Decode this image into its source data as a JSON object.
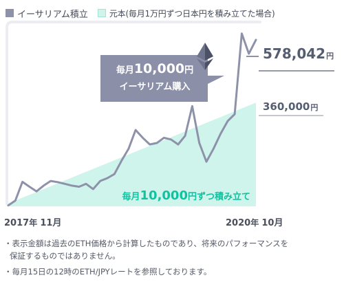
{
  "legend": {
    "series_a": "イーサリアム積立",
    "series_b": "元本(毎月1万円ずつ日本円を積み立てた場合)"
  },
  "callout": {
    "line1_prefix": "毎月",
    "line1_amount": "10,000",
    "line1_unit": "円",
    "line2": "イーサリアム購入"
  },
  "final_value": {
    "amount": "578,042",
    "unit": "円"
  },
  "principal_value": {
    "amount": "360,000",
    "unit": "円"
  },
  "area_label": {
    "prefix": "毎月",
    "amount": "10,000",
    "suffix": "円ずつ積み立て"
  },
  "x_axis": {
    "start_num": "2017",
    "start_mid": "年 ",
    "start_month": "11月",
    "end_num": "2020",
    "end_mid": "年 ",
    "end_month": "10月"
  },
  "notes": [
    "・表示金額は過去のETH価格から計算したものであり、将来のパフォーマンスを",
    "保証するものではありません。",
    "・毎月15日の12時のETH/JPYレートを参照しております。"
  ],
  "colors": {
    "line": "#8d92a9",
    "area": "#cff4ec",
    "callout": "#8b8fa8",
    "area_text": "#10c3a0",
    "axis": "#555d70"
  },
  "icon": "ethereum-icon",
  "chart_data": {
    "type": "line+area",
    "x_start": "2017-11",
    "x_end": "2020-10",
    "ylim": [
      0,
      640000
    ],
    "series": [
      {
        "name": "イーサリアム積立",
        "type": "line",
        "values": [
          3000,
          20000,
          85000,
          68000,
          52000,
          72000,
          88000,
          84000,
          78000,
          72000,
          68000,
          78000,
          60000,
          88000,
          98000,
          112000,
          158000,
          200000,
          265000,
          238000,
          215000,
          220000,
          238000,
          232000,
          215000,
          245000,
          348000,
          220000,
          155000,
          200000,
          252000,
          296000,
          320000,
          600000,
          530000,
          578042
        ]
      },
      {
        "name": "元本(毎月1万円ずつ日本円を積み立てた場合)",
        "type": "area",
        "values": [
          10000,
          20000,
          30000,
          40000,
          50000,
          60000,
          70000,
          80000,
          90000,
          100000,
          110000,
          120000,
          130000,
          140000,
          150000,
          160000,
          170000,
          180000,
          190000,
          200000,
          210000,
          220000,
          230000,
          240000,
          250000,
          260000,
          270000,
          280000,
          290000,
          300000,
          310000,
          320000,
          330000,
          340000,
          350000,
          360000
        ]
      }
    ]
  }
}
